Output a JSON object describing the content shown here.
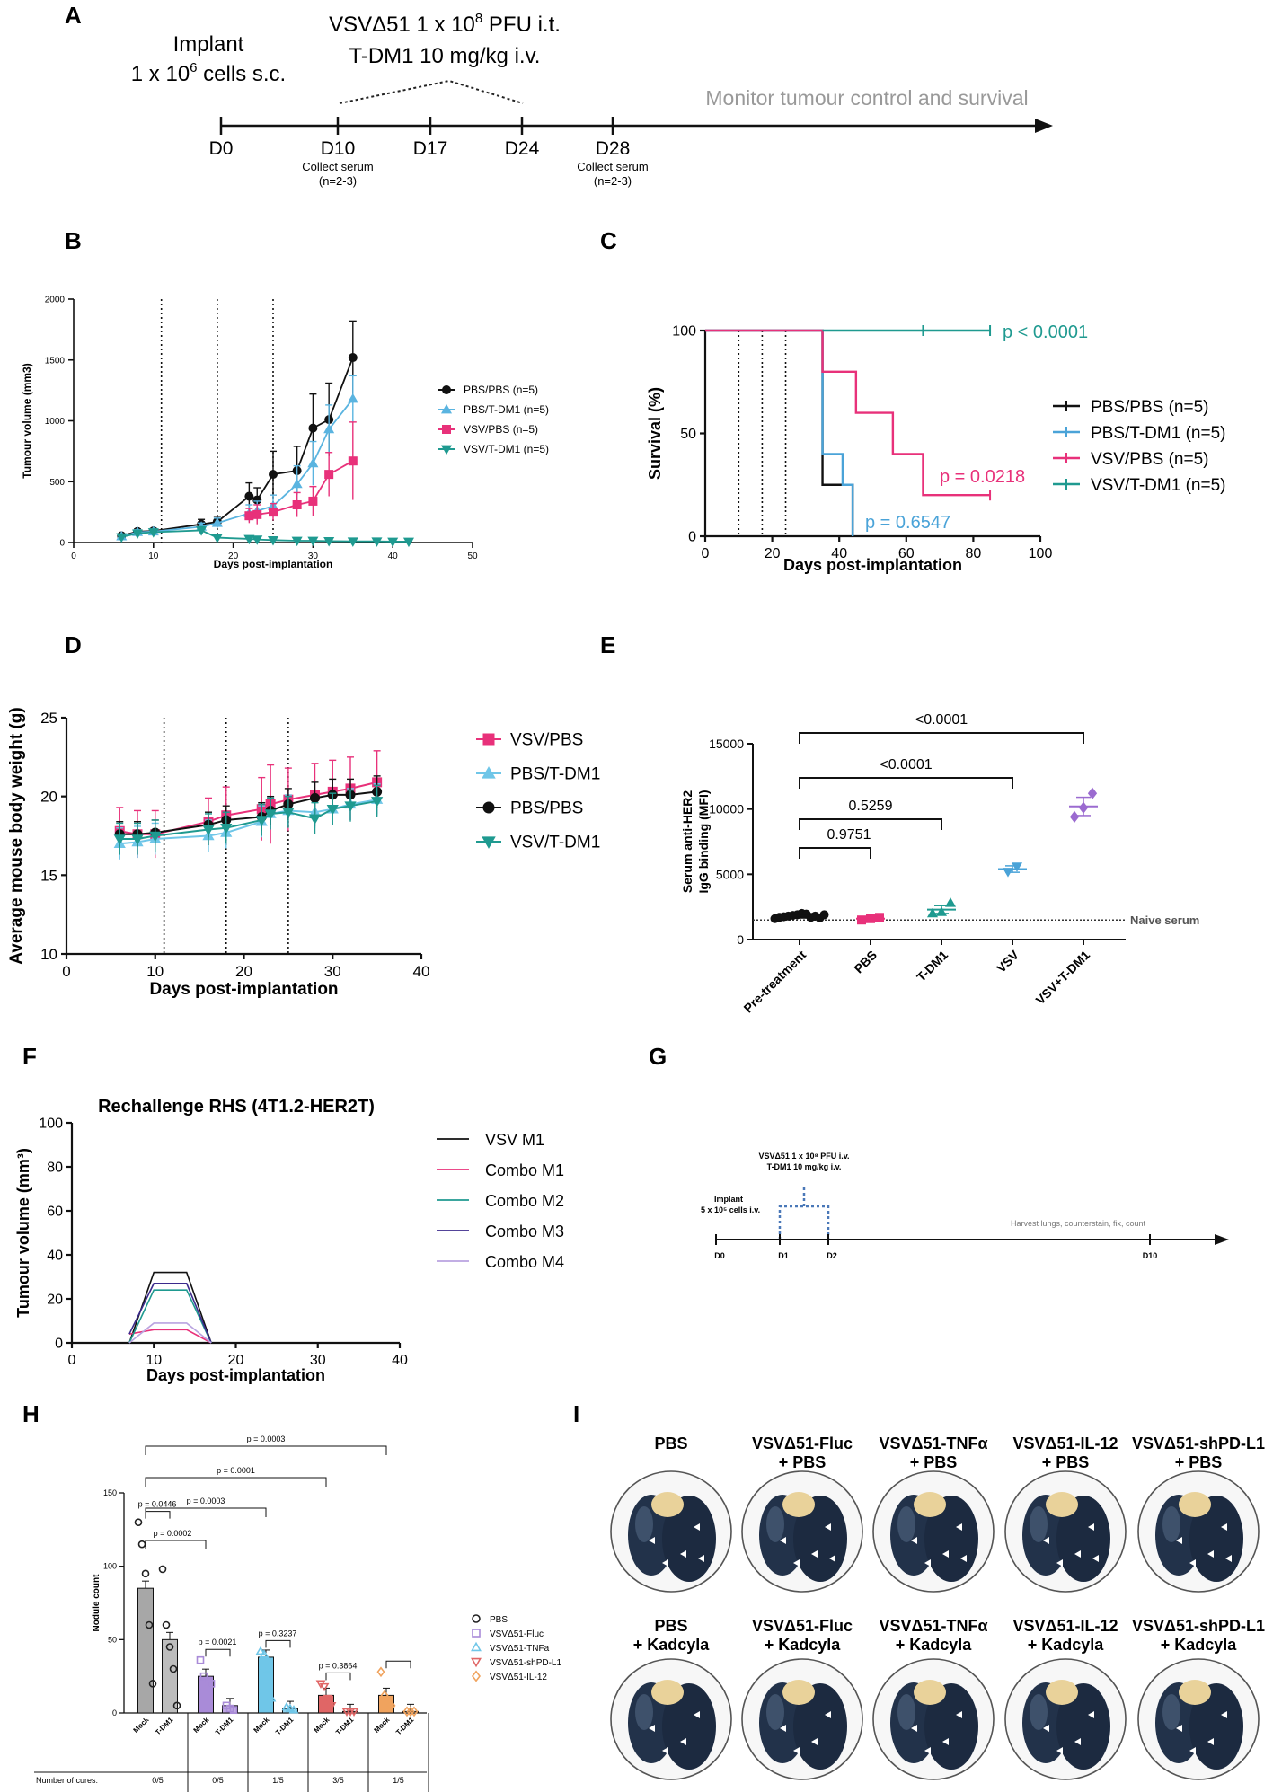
{
  "panel_letters": [
    "A",
    "B",
    "C",
    "D",
    "E",
    "F",
    "G",
    "H",
    "I"
  ],
  "timeline_a": {
    "implant_line1": "Implant",
    "implant_line2": "1 x 10",
    "implant_sup": "6",
    "implant_tail": " cells s.c.",
    "treat_line1": "VSVΔ51 1 x 10",
    "treat_sup": "8",
    "treat_tail": " PFU i.t.",
    "treat_line2": "T-DM1 10 mg/kg i.v.",
    "monitor": "Monitor tumour control and survival",
    "days": [
      "D0",
      "D10",
      "D17",
      "D24",
      "D28"
    ],
    "serum_label": "Collect serum",
    "serum_n": "(n=2-3)"
  },
  "timeline_g": {
    "implant_line1": "Implant",
    "implant_line2": "5 x 10⁵ cells i.v.",
    "treat_line1": "VSVΔ51 1 x 10⁸ PFU i.v.",
    "treat_line2": "T-DM1 10 mg/kg i.v.",
    "harvest": "Harvest lungs, counterstain, fix, count",
    "days": [
      "D0",
      "D1",
      "D2",
      "D10"
    ]
  },
  "lungs": {
    "row1": [
      {
        "l1": "PBS",
        "l2": ""
      },
      {
        "l1": "VSVΔ51-Fluc",
        "l2": "+ PBS"
      },
      {
        "l1": "VSVΔ51-TNFα",
        "l2": "+ PBS"
      },
      {
        "l1": "VSVΔ51-IL-12",
        "l2": "+ PBS"
      },
      {
        "l1": "VSVΔ51-shPD-L1",
        "l2": "+ PBS"
      }
    ],
    "row2": [
      {
        "l1": "PBS",
        "l2": "+ Kadcyla"
      },
      {
        "l1": "VSVΔ51-Fluc",
        "l2": "+ Kadcyla"
      },
      {
        "l1": "VSVΔ51-TNFα",
        "l2": "+ Kadcyla"
      },
      {
        "l1": "VSVΔ51-IL-12",
        "l2": "+ Kadcyla"
      },
      {
        "l1": "VSVΔ51-shPD-L1",
        "l2": "+ Kadcyla"
      }
    ]
  },
  "chart_data": [
    {
      "id": "B",
      "type": "line",
      "xlabel": "Days post-implantation",
      "ylabel": "Tumour volume (mm3)",
      "xlim": [
        0,
        50
      ],
      "ylim": [
        0,
        2000
      ],
      "xticks": [
        0,
        10,
        20,
        30,
        40,
        50
      ],
      "yticks": [
        0,
        500,
        1000,
        1500,
        2000
      ],
      "vlines": [
        11,
        18,
        25
      ],
      "legend": [
        "PBS/PBS (n=5)",
        "PBS/T-DM1 (n=5)",
        "VSV/PBS (n=5)",
        "VSV/T-DM1 (n=5)"
      ],
      "series": [
        {
          "name": "PBS/PBS (n=5)",
          "color": "#111111",
          "marker": "circle",
          "x": [
            6,
            8,
            10,
            16,
            18,
            22,
            23,
            25,
            28,
            30,
            32,
            35
          ],
          "y": [
            55,
            90,
            95,
            150,
            170,
            380,
            350,
            560,
            590,
            940,
            1010,
            1520
          ],
          "err": [
            15,
            20,
            20,
            40,
            45,
            110,
            100,
            190,
            200,
            280,
            300,
            300
          ]
        },
        {
          "name": "PBS/T-DM1 (n=5)",
          "color": "#5ab4e0",
          "marker": "triangle",
          "x": [
            6,
            8,
            10,
            16,
            18,
            22,
            23,
            25,
            28,
            30,
            32,
            35
          ],
          "y": [
            50,
            85,
            90,
            130,
            160,
            240,
            260,
            300,
            480,
            650,
            930,
            1180
          ],
          "err": [
            15,
            20,
            20,
            30,
            40,
            70,
            80,
            90,
            150,
            180,
            200,
            190
          ]
        },
        {
          "name": "VSV/PBS (n=5)",
          "color": "#e8317a",
          "marker": "square",
          "x": [
            22,
            23,
            25,
            28,
            30,
            32,
            35
          ],
          "y": [
            220,
            230,
            250,
            310,
            340,
            560,
            670
          ],
          "err": [
            60,
            80,
            70,
            100,
            120,
            180,
            320
          ]
        },
        {
          "name": "VSV/T-DM1 (n=5)",
          "color": "#1f9a90",
          "marker": "triangle-down",
          "x": [
            6,
            8,
            10,
            16,
            18,
            22,
            23,
            25,
            28,
            30,
            32,
            35,
            38,
            40,
            42
          ],
          "y": [
            45,
            75,
            85,
            100,
            40,
            30,
            25,
            20,
            15,
            15,
            12,
            10,
            10,
            8,
            8
          ],
          "err": [
            15,
            20,
            20,
            30,
            20,
            10,
            10,
            8,
            6,
            6,
            5,
            5,
            4,
            4,
            4
          ]
        }
      ]
    },
    {
      "id": "C",
      "type": "line",
      "xlabel": "Days post-implantation",
      "ylabel": "Survival (%)",
      "xlim": [
        0,
        100
      ],
      "ylim": [
        0,
        100
      ],
      "xticks": [
        0,
        20,
        40,
        60,
        80,
        100
      ],
      "yticks": [
        0,
        50,
        100
      ],
      "vlines": [
        10,
        17,
        24
      ],
      "legend": [
        "PBS/PBS (n=5)",
        "PBS/T-DM1 (n=5)",
        "VSV/PBS (n=5)",
        "VSV/T-DM1 (n=5)"
      ],
      "annotations": [
        {
          "text": "p < 0.0001",
          "color": "#1f9a90"
        },
        {
          "text": "p = 0.0218",
          "color": "#e8317a"
        },
        {
          "text": "p = 0.6547",
          "color": "#4aa3d8"
        }
      ],
      "series": [
        {
          "name": "PBS/PBS (n=5)",
          "color": "#111111",
          "x": [
            0,
            35,
            35,
            44,
            44
          ],
          "y": [
            100,
            100,
            25,
            25,
            0
          ]
        },
        {
          "name": "PBS/T-DM1 (n=5)",
          "color": "#4aa3d8",
          "x": [
            0,
            35,
            35,
            41,
            41,
            44,
            44
          ],
          "y": [
            100,
            100,
            40,
            40,
            25,
            25,
            0
          ]
        },
        {
          "name": "VSV/PBS (n=5)",
          "color": "#e8317a",
          "x": [
            0,
            35,
            35,
            45,
            45,
            56,
            56,
            65,
            65,
            85
          ],
          "y": [
            100,
            100,
            80,
            80,
            60,
            60,
            40,
            40,
            20,
            20
          ]
        },
        {
          "name": "VSV/T-DM1 (n=5)",
          "color": "#1f9a90",
          "x": [
            35,
            85
          ],
          "y": [
            100,
            100
          ]
        }
      ]
    },
    {
      "id": "D",
      "type": "line",
      "xlabel": "Days post-implantation",
      "ylabel": "Average mouse body weight (g)",
      "xlim": [
        0,
        40
      ],
      "ylim": [
        10,
        25
      ],
      "xticks": [
        0,
        10,
        20,
        30,
        40
      ],
      "yticks": [
        10,
        15,
        20,
        25
      ],
      "vlines": [
        11,
        18,
        25
      ],
      "legend": [
        "VSV/PBS",
        "PBS/T-DM1",
        "PBS/PBS",
        "VSV/T-DM1"
      ],
      "series": [
        {
          "name": "VSV/PBS",
          "color": "#e8317a",
          "marker": "square",
          "x": [
            6,
            8,
            10,
            16,
            18,
            22,
            23,
            25,
            28,
            30,
            32,
            35
          ],
          "y": [
            17.8,
            17.6,
            17.6,
            18.4,
            18.8,
            19.2,
            19.5,
            19.8,
            20.1,
            20.3,
            20.5,
            20.9
          ],
          "err": [
            1.5,
            1.5,
            1.5,
            1.5,
            1.8,
            2,
            2.5,
            2,
            2,
            2,
            2,
            2
          ]
        },
        {
          "name": "PBS/T-DM1",
          "color": "#6fc6e8",
          "marker": "triangle",
          "x": [
            6,
            8,
            10,
            16,
            18,
            22,
            23,
            25,
            28,
            30,
            32,
            35
          ],
          "y": [
            17.0,
            17.1,
            17.3,
            17.5,
            17.7,
            18.4,
            18.9,
            19.1,
            19.0,
            19.2,
            19.5,
            19.8
          ],
          "err": [
            1,
            1,
            1,
            1,
            1,
            1,
            1,
            1,
            1,
            1,
            1,
            1
          ]
        },
        {
          "name": "PBS/PBS",
          "color": "#111111",
          "marker": "circle",
          "x": [
            6,
            8,
            10,
            16,
            18,
            22,
            23,
            25,
            28,
            30,
            32,
            35
          ],
          "y": [
            17.6,
            17.6,
            17.7,
            18.2,
            18.5,
            18.7,
            19.1,
            19.5,
            19.9,
            20.1,
            20.1,
            20.3
          ],
          "err": [
            0.8,
            0.8,
            0.8,
            0.8,
            0.9,
            0.9,
            0.9,
            1,
            1,
            1,
            1,
            1
          ]
        },
        {
          "name": "VSV/T-DM1",
          "color": "#1f9a90",
          "marker": "triangle-down",
          "x": [
            6,
            8,
            10,
            16,
            18,
            22,
            23,
            25,
            28,
            30,
            32,
            35
          ],
          "y": [
            17.3,
            17.3,
            17.5,
            17.9,
            18.0,
            18.5,
            18.9,
            19.0,
            18.6,
            19.2,
            19.4,
            19.7
          ],
          "err": [
            1,
            1,
            1,
            1,
            1,
            1,
            1,
            1,
            1,
            1,
            1,
            1
          ]
        }
      ]
    },
    {
      "id": "E",
      "type": "scatter",
      "ylabel_line1": "Serum anti-HER2",
      "ylabel_line2": "IgG binding (MFI)",
      "ylim": [
        0,
        15000
      ],
      "yticks": [
        0,
        5000,
        10000,
        15000
      ],
      "categories": [
        "Pre-treatment",
        "PBS",
        "T-DM1",
        "VSV",
        "VSV+T-DM1"
      ],
      "naive_label": "Naive serum",
      "naive_value": 1500,
      "brackets": [
        {
          "from": 0,
          "to": 1,
          "text": "0.9751"
        },
        {
          "from": 0,
          "to": 2,
          "text": "0.5259"
        },
        {
          "from": 0,
          "to": 3,
          "text": "<0.0001"
        },
        {
          "from": 0,
          "to": 4,
          "text": "<0.0001"
        }
      ],
      "groups": [
        {
          "color": "#111111",
          "marker": "circle",
          "mean": 1800,
          "sem": 150,
          "points": [
            1600,
            1700,
            1750,
            1800,
            1850,
            1900,
            2000,
            1950,
            1700,
            1800,
            1650,
            1900
          ]
        },
        {
          "color": "#e8317a",
          "marker": "square",
          "mean": 1600,
          "sem": 100,
          "points": [
            1500,
            1600,
            1700
          ]
        },
        {
          "color": "#1f9a90",
          "marker": "triangle",
          "mean": 2300,
          "sem": 300,
          "points": [
            2000,
            2100,
            2800
          ]
        },
        {
          "color": "#4aa3d8",
          "marker": "triangle-down",
          "mean": 5400,
          "sem": 250,
          "points": [
            5200,
            5600
          ]
        },
        {
          "color": "#9b6bd0",
          "marker": "diamond",
          "mean": 10200,
          "sem": 700,
          "points": [
            9400,
            10100,
            11200
          ]
        }
      ]
    },
    {
      "id": "F",
      "type": "line",
      "title": "Rechallenge RHS (4T1.2-HER2T)",
      "xlabel": "Days post-implantation",
      "ylabel": "Tumour volume (mm³)",
      "xlim": [
        0,
        40
      ],
      "ylim": [
        0,
        100
      ],
      "xticks": [
        0,
        10,
        20,
        30,
        40
      ],
      "yticks": [
        0,
        20,
        40,
        60,
        80,
        100
      ],
      "legend": [
        "VSV M1",
        "Combo M1",
        "Combo M2",
        "Combo M3",
        "Combo M4"
      ],
      "series": [
        {
          "name": "VSV M1",
          "color": "#111111",
          "x": [
            7,
            10,
            14,
            17
          ],
          "y": [
            0,
            32,
            32,
            0
          ]
        },
        {
          "name": "Combo M1",
          "color": "#e8317a",
          "x": [
            7,
            10,
            14,
            17
          ],
          "y": [
            4,
            6,
            6,
            0
          ]
        },
        {
          "name": "Combo M2",
          "color": "#1f9a90",
          "x": [
            7,
            10,
            14,
            17
          ],
          "y": [
            0,
            24,
            24,
            0
          ]
        },
        {
          "name": "Combo M3",
          "color": "#3b2a8c",
          "x": [
            7,
            10,
            14,
            17
          ],
          "y": [
            4,
            27,
            27,
            0
          ]
        },
        {
          "name": "Combo M4",
          "color": "#b9a3e0",
          "x": [
            7,
            10,
            14,
            17
          ],
          "y": [
            0,
            9,
            9,
            0
          ]
        }
      ]
    },
    {
      "id": "H",
      "type": "bar",
      "ylabel": "Nodule count",
      "ylim": [
        0,
        150
      ],
      "yticks": [
        0,
        50,
        100,
        150
      ],
      "sublabels": [
        "Mock",
        "T-DM1"
      ],
      "cures_label": "Number of cures:",
      "cures": [
        "0/5",
        "0/5",
        "1/5",
        "3/5",
        "1/5"
      ],
      "legend": [
        "PBS",
        "VSVΔ51-Fluc",
        "VSVΔ51-TNFa",
        "VSVΔ51-shPD-L1",
        "VSVΔ51-IL-12"
      ],
      "p_across": [
        "p = 0.0003",
        "p = 0.0001",
        "p = 0.0003",
        "p = 0.0002"
      ],
      "p_within": [
        "p = 0.0446",
        "p = 0.0021",
        "p = 0.3237",
        "p = 0.3864"
      ],
      "groups": [
        {
          "name": "PBS",
          "color": "#a7a7a7",
          "marker": "circle",
          "mock": 85,
          "tdm1": 50,
          "mock_pts": [
            130,
            115,
            95,
            60,
            20
          ],
          "tdm1_pts": [
            98,
            60,
            45,
            30,
            5
          ]
        },
        {
          "name": "VSVΔ51-Fluc",
          "color": "#a98bd8",
          "marker": "square",
          "mock": 25,
          "tdm1": 5,
          "mock_pts": [
            36,
            25,
            22,
            20
          ],
          "tdm1_pts": [
            5,
            3,
            2
          ]
        },
        {
          "name": "VSVΔ51-TNFa",
          "color": "#6fc6e8",
          "marker": "triangle",
          "mock": 38,
          "tdm1": 3,
          "mock_pts": [
            42,
            40,
            30,
            10
          ],
          "tdm1_pts": [
            4,
            3,
            2
          ]
        },
        {
          "name": "VSVΔ51-shPD-L1",
          "color": "#e06666",
          "marker": "triangle-down",
          "mock": 12,
          "tdm1": 1,
          "mock_pts": [
            20,
            18,
            10,
            5
          ],
          "tdm1_pts": [
            1,
            1,
            1
          ]
        },
        {
          "name": "VSVΔ51-IL-12",
          "color": "#f0a35e",
          "marker": "diamond",
          "mock": 12,
          "tdm1": 1,
          "mock_pts": [
            28,
            12,
            8,
            5
          ],
          "tdm1_pts": [
            1,
            1,
            1
          ]
        }
      ]
    }
  ]
}
